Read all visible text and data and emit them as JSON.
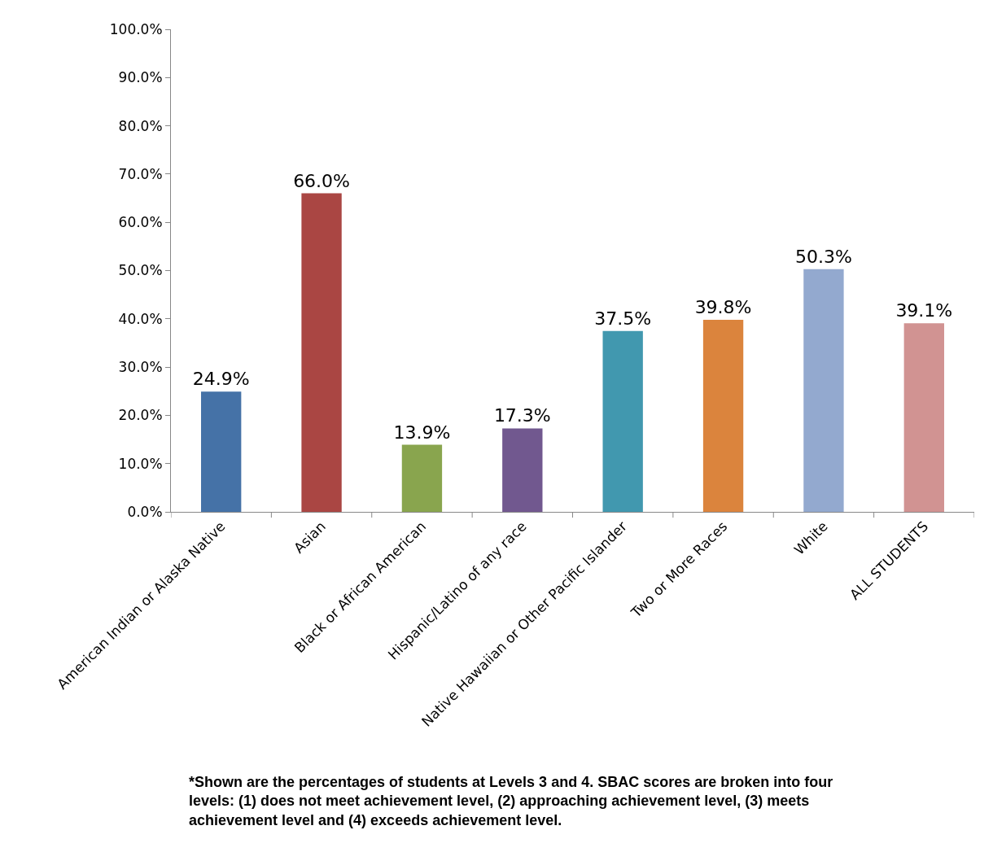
{
  "chart_data": {
    "type": "bar",
    "categories": [
      "American Indian or Alaska Native",
      "Asian",
      "Black or African American",
      "Hispanic/Latino of any race",
      "Native Hawaiian or Other Pacific Islander",
      "Two or More Races",
      "White",
      "ALL STUDENTS"
    ],
    "values": [
      24.9,
      66.0,
      13.9,
      17.3,
      37.5,
      39.8,
      50.3,
      39.1
    ],
    "colors": [
      "#4572a7",
      "#aa4643",
      "#89a54e",
      "#71588f",
      "#4198af",
      "#db843d",
      "#93a9cf",
      "#d19392"
    ],
    "value_labels": [
      "24.9%",
      "66.0%",
      "13.9%",
      "17.3%",
      "37.5%",
      "39.8%",
      "50.3%",
      "39.1%"
    ],
    "ylim": [
      0,
      100
    ],
    "yticks": [
      {
        "value": 0,
        "label": "0.0%"
      },
      {
        "value": 10,
        "label": "10.0%"
      },
      {
        "value": 20,
        "label": "20.0%"
      },
      {
        "value": 30,
        "label": "30.0%"
      },
      {
        "value": 40,
        "label": "40.0%"
      },
      {
        "value": 50,
        "label": "50.0%"
      },
      {
        "value": 60,
        "label": "60.0%"
      },
      {
        "value": 70,
        "label": "70.0%"
      },
      {
        "value": 80,
        "label": "80.0%"
      },
      {
        "value": 90,
        "label": "90.0%"
      },
      {
        "value": 100,
        "label": "100.0%"
      }
    ],
    "grid": false,
    "annotations": [
      "*Shown are the percentages of students at Levels 3 and 4. SBAC scores are broken into four levels: (1) does not meet achievement level, (2) approaching achievement level, (3) meets achievement level and (4) exceeds achievement level."
    ]
  }
}
